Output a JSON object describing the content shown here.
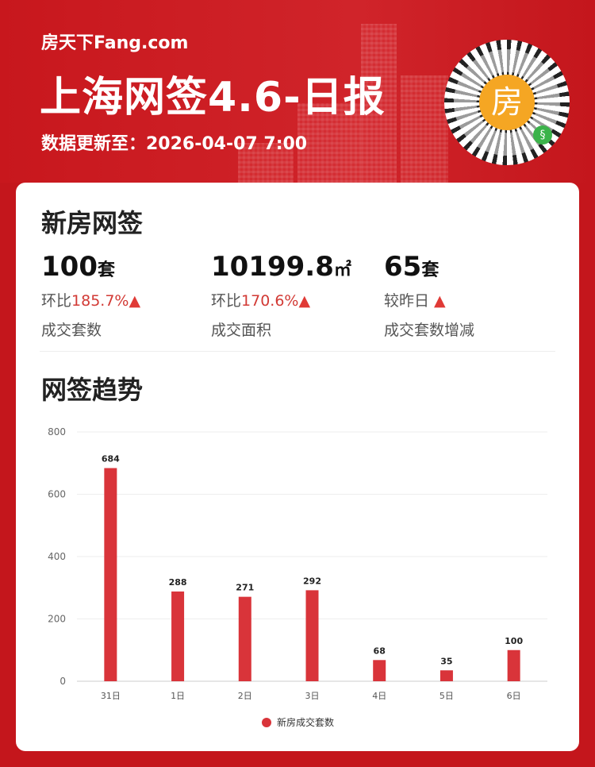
{
  "header": {
    "logo": "房天下Fang.com",
    "title": "上海网签4.6-日报",
    "update": "数据更新至：2026-04-07 7:00",
    "qr_center": "房"
  },
  "section1": {
    "title": "新房网签",
    "stats": [
      {
        "value": "100",
        "unit": "套",
        "prefix": "环比",
        "change": "185.7%",
        "arrow": "▲",
        "label": "成交套数"
      },
      {
        "value": "10199.8",
        "unit": "㎡",
        "prefix": "环比",
        "change": "170.6%",
        "arrow": "▲",
        "label": "成交面积"
      },
      {
        "value": "65",
        "unit": "套",
        "prefix": "较昨日 ",
        "change": "",
        "arrow": "▲",
        "label": "成交套数增减"
      }
    ]
  },
  "section2": {
    "title": "网签趋势"
  },
  "chart_data": {
    "type": "bar",
    "categories": [
      "31日",
      "1日",
      "2日",
      "3日",
      "4日",
      "5日",
      "6日"
    ],
    "series": [
      {
        "name": "新房成交套数",
        "values": [
          684,
          288,
          271,
          292,
          68,
          35,
          100
        ],
        "color": "#d9343a"
      }
    ],
    "ylim": [
      0,
      800
    ],
    "yticks": [
      0,
      200,
      400,
      600,
      800
    ],
    "grid": true,
    "legend": "bottom"
  }
}
